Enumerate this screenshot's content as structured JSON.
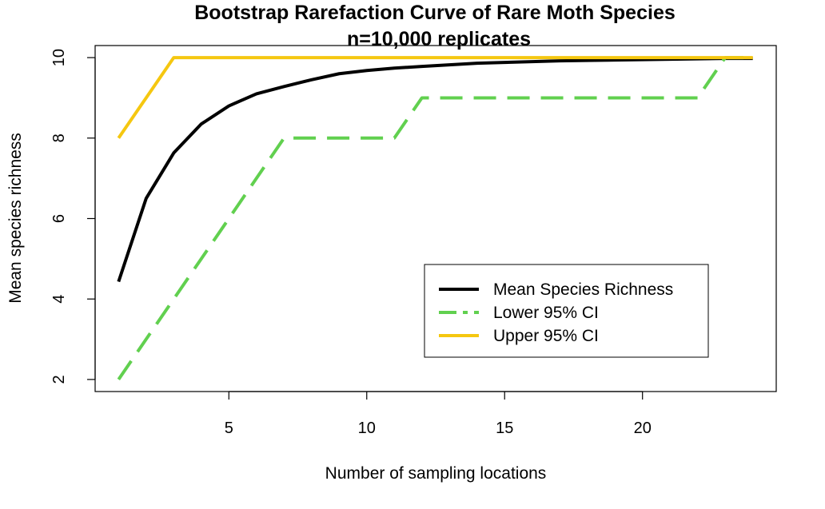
{
  "chart_data": {
    "type": "line",
    "title": "Bootstrap Rarefaction Curve of Rare Moth Species",
    "subtitle": "n=10,000 replicates",
    "xlabel": "Number of sampling locations",
    "ylabel": "Mean species richness",
    "xlim": [
      0.15,
      24.85
    ],
    "ylim": [
      1.7,
      10.3
    ],
    "x_ticks": [
      5,
      10,
      15,
      20
    ],
    "y_ticks": [
      2,
      4,
      6,
      8,
      10
    ],
    "grid": false,
    "legend_position": "bottom-right",
    "x": [
      1,
      2,
      3,
      4,
      5,
      6,
      7,
      8,
      9,
      10,
      11,
      12,
      13,
      14,
      15,
      16,
      17,
      18,
      19,
      20,
      21,
      22,
      23,
      24
    ],
    "series": [
      {
        "name": "Mean Species Richness",
        "color": "#000000",
        "dash": "solid",
        "values": [
          4.43,
          6.5,
          7.63,
          8.35,
          8.8,
          9.1,
          9.28,
          9.45,
          9.6,
          9.68,
          9.74,
          9.78,
          9.82,
          9.86,
          9.88,
          9.9,
          9.92,
          9.93,
          9.94,
          9.95,
          9.96,
          9.97,
          9.98,
          9.98
        ]
      },
      {
        "name": "Lower 95% CI",
        "color": "#61D04F",
        "dash": "dashed",
        "values": [
          2,
          3,
          4,
          5,
          6,
          7,
          8,
          8,
          8,
          8,
          8,
          9,
          9,
          9,
          9,
          9,
          9,
          9,
          9,
          9,
          9,
          9,
          10,
          10
        ]
      },
      {
        "name": "Upper 95% CI",
        "color": "#F5C710",
        "dash": "solid",
        "values": [
          8,
          9,
          10,
          10,
          10,
          10,
          10,
          10,
          10,
          10,
          10,
          10,
          10,
          10,
          10,
          10,
          10,
          10,
          10,
          10,
          10,
          10,
          10,
          10
        ]
      }
    ]
  }
}
